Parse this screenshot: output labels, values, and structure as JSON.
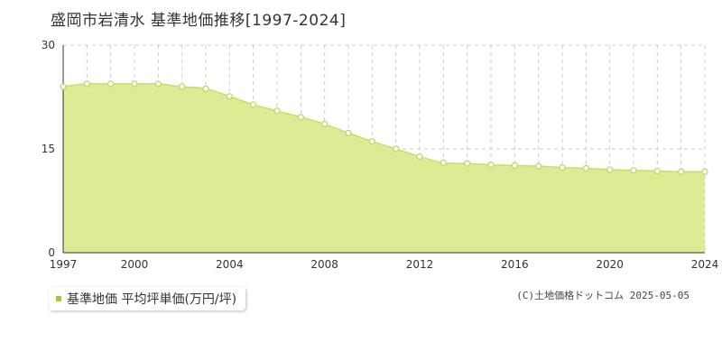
{
  "chart_data": {
    "type": "area",
    "title": "盛岡市岩清水 基準地価推移[1997-2024]",
    "x": [
      1997,
      1998,
      1999,
      2000,
      2001,
      2002,
      2003,
      2004,
      2005,
      2006,
      2007,
      2008,
      2009,
      2010,
      2011,
      2012,
      2013,
      2014,
      2015,
      2016,
      2017,
      2018,
      2019,
      2020,
      2021,
      2022,
      2023,
      2024
    ],
    "x_tick_labels": [
      "1997",
      "2000",
      "2004",
      "2008",
      "2012",
      "2016",
      "2020",
      "2024"
    ],
    "y_tick_labels": [
      "0",
      "15",
      "30"
    ],
    "series": [
      {
        "name": "基準地価 平均坪単価(万円/坪)",
        "values": [
          24.0,
          24.4,
          24.4,
          24.4,
          24.4,
          24.0,
          23.7,
          22.6,
          21.4,
          20.5,
          19.6,
          18.6,
          17.3,
          16.1,
          15.0,
          13.9,
          13.0,
          12.9,
          12.7,
          12.6,
          12.5,
          12.3,
          12.2,
          12.0,
          11.9,
          11.8,
          11.7,
          11.7
        ]
      }
    ],
    "xlim": [
      1997,
      2024
    ],
    "ylim": [
      0,
      30
    ],
    "grid": true,
    "legend_position": "bottom-left"
  },
  "colors": {
    "area_fill": "#dbec94",
    "line": "#c4e06a",
    "marker_fill": "#ffffff",
    "marker_stroke": "#bcd96a",
    "legend_swatch": "#a3c640"
  },
  "legend": {
    "label": "基準地価 平均坪単価(万円/坪)"
  },
  "credit": "(C)土地価格ドットコム 2025-05-05"
}
